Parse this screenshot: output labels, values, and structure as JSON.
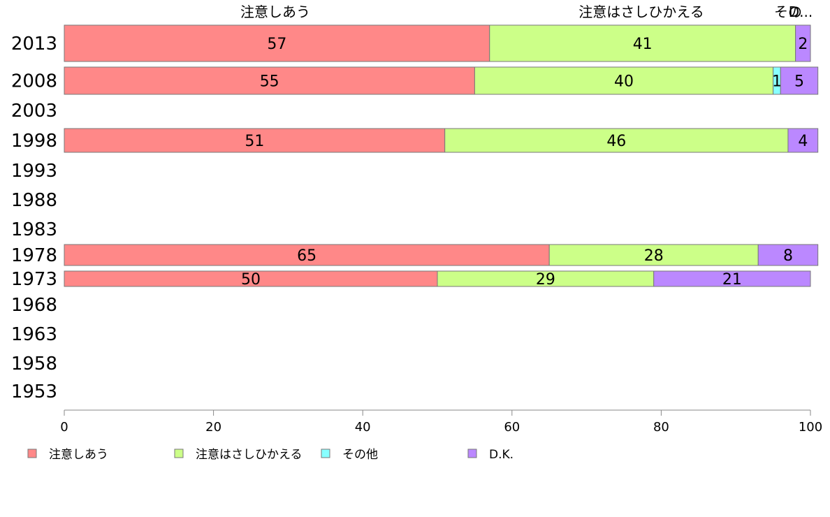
{
  "chart_data": {
    "type": "bar",
    "orientation": "horizontal",
    "stacked": true,
    "categories": [
      "2013",
      "2008",
      "2003",
      "1998",
      "1993",
      "1988",
      "1983",
      "1978",
      "1973",
      "1968",
      "1963",
      "1958",
      "1953"
    ],
    "series": [
      {
        "name": "注意しあう",
        "color": "#ff8888",
        "values": [
          57,
          55,
          null,
          51,
          null,
          null,
          null,
          65,
          50,
          null,
          null,
          null,
          null
        ]
      },
      {
        "name": "注意はさしひかえる",
        "color": "#ccff88",
        "values": [
          41,
          40,
          null,
          46,
          null,
          null,
          null,
          28,
          29,
          null,
          null,
          null,
          null
        ]
      },
      {
        "name": "その他",
        "color": "#88ffff",
        "values": [
          0,
          1,
          null,
          0,
          null,
          null,
          null,
          0,
          0,
          null,
          null,
          null,
          null
        ]
      },
      {
        "name": "D.K.",
        "color": "#bb88ff",
        "values": [
          2,
          5,
          null,
          4,
          null,
          null,
          null,
          8,
          21,
          null,
          null,
          null,
          null
        ]
      }
    ],
    "top_labels": [
      "注意しあう",
      "注意はさしひかえる",
      "その",
      "D..."
    ],
    "xlim": [
      0,
      100
    ],
    "xticks": [
      "0",
      "20",
      "40",
      "60",
      "80",
      "100"
    ],
    "legend_position": "bottom",
    "grid": false
  }
}
